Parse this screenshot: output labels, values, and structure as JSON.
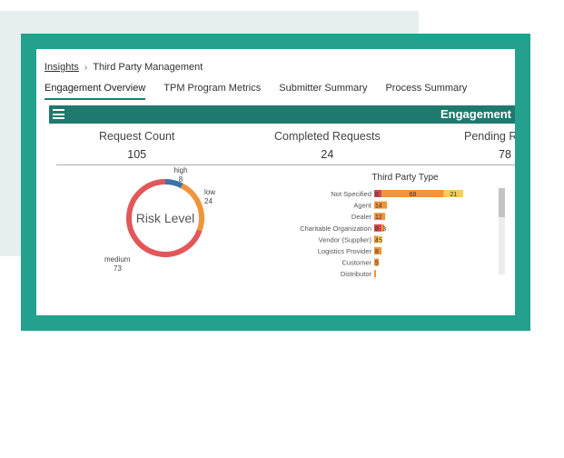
{
  "breadcrumb": {
    "link": "Insights",
    "separator": "›",
    "current": "Third Party Management"
  },
  "tabs": [
    {
      "label": "Engagement Overview",
      "active": true
    },
    {
      "label": "TPM Program Metrics",
      "active": false
    },
    {
      "label": "Submitter Summary",
      "active": false
    },
    {
      "label": "Process Summary",
      "active": false
    }
  ],
  "dashboard": {
    "title": "Engagement",
    "kpis": [
      {
        "label": "Request Count",
        "value": "105"
      },
      {
        "label": "Completed Requests",
        "value": "24"
      },
      {
        "label": "Pending R",
        "value": "78"
      }
    ]
  },
  "colors": {
    "frame": "#23a08e",
    "header": "#1e7a6e",
    "high": "#3f72a4",
    "low": "#f0953a",
    "medium": "#e1575a",
    "bar_red": "#d6484e",
    "bar_orange": "#f0953a",
    "bar_yellow": "#f2cd5f"
  },
  "chart_data": [
    {
      "type": "pie",
      "title": "Risk Level",
      "slices": [
        {
          "label": "high",
          "value": 8
        },
        {
          "label": "low",
          "value": 24
        },
        {
          "label": "medium",
          "value": 73
        }
      ]
    },
    {
      "type": "bar",
      "title": "Third Party Type",
      "orientation": "horizontal",
      "stacked": true,
      "categories": [
        "Not Specified",
        "Agent",
        "Dealer",
        "Charitable Organization",
        "Vendor (Supplier)",
        "Logistics Provider",
        "Customer",
        "Distributor"
      ],
      "series": [
        {
          "values": [
            8,
            0,
            0,
            8,
            0,
            0,
            0,
            0
          ]
        },
        {
          "values": [
            68,
            14,
            12,
            3,
            4,
            8,
            5,
            2
          ]
        },
        {
          "values": [
            21,
            0,
            0,
            0,
            5,
            0,
            0,
            0
          ]
        }
      ],
      "data_labels": [
        [
          "8",
          "",
          "",
          "8",
          "",
          "",
          "",
          ""
        ],
        [
          "68",
          "14",
          "12",
          "3",
          "4",
          "8",
          "5",
          ""
        ],
        [
          "21",
          "",
          "",
          "",
          "5",
          "",
          "",
          ""
        ]
      ]
    }
  ]
}
